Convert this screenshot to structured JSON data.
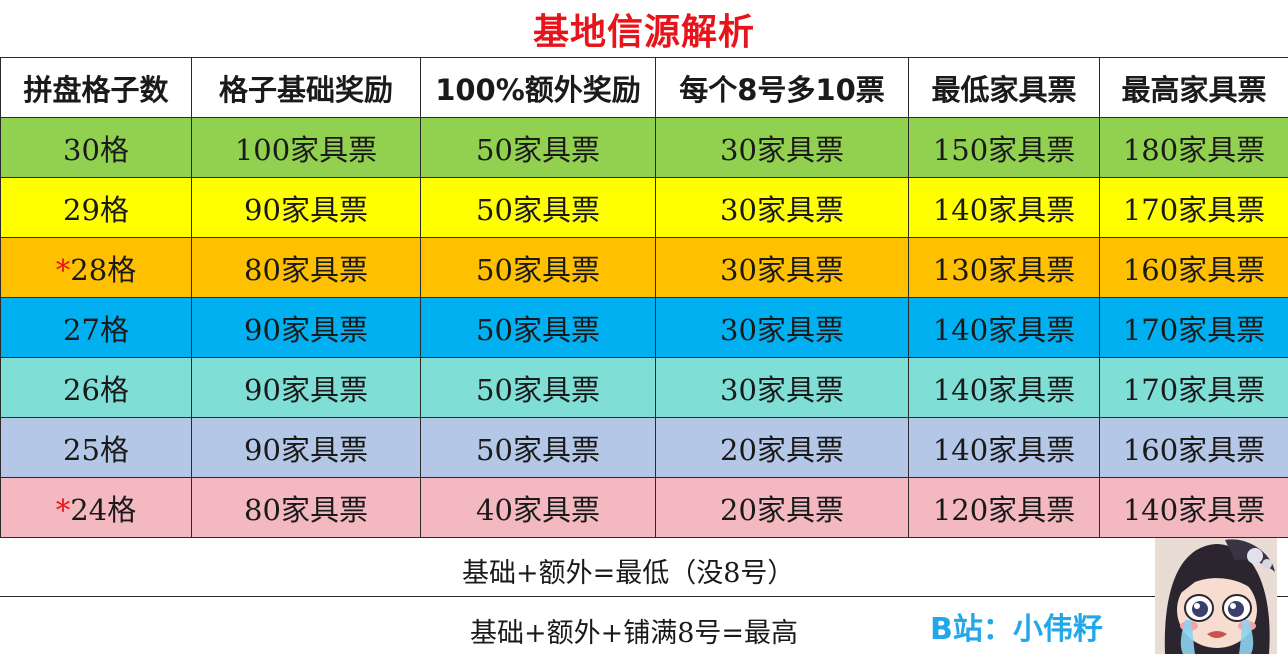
{
  "title": "基地信源解析",
  "columns": [
    "拼盘格子数",
    "格子基础奖励",
    "100%额外奖励",
    "每个8号多10票",
    "最低家具票",
    "最高家具票"
  ],
  "row_colors": [
    "#92d050",
    "#ffff00",
    "#ffc000",
    "#00b0f0",
    "#7fdfd7",
    "#b4c7e7",
    "#f4b8c0"
  ],
  "rows": [
    {
      "star": "",
      "grid": "30格",
      "base": "100家具票",
      "extra": "50家具票",
      "bonus": "30家具票",
      "min": "150家具票",
      "max": "180家具票"
    },
    {
      "star": "",
      "grid": "29格",
      "base": "90家具票",
      "extra": "50家具票",
      "bonus": "30家具票",
      "min": "140家具票",
      "max": "170家具票"
    },
    {
      "star": "*",
      "grid": "28格",
      "base": "80家具票",
      "extra": "50家具票",
      "bonus": "30家具票",
      "min": "130家具票",
      "max": "160家具票"
    },
    {
      "star": "",
      "grid": "27格",
      "base": "90家具票",
      "extra": "50家具票",
      "bonus": "30家具票",
      "min": "140家具票",
      "max": "170家具票"
    },
    {
      "star": "",
      "grid": "26格",
      "base": "90家具票",
      "extra": "50家具票",
      "bonus": "30家具票",
      "min": "140家具票",
      "max": "170家具票"
    },
    {
      "star": "",
      "grid": "25格",
      "base": "90家具票",
      "extra": "50家具票",
      "bonus": "20家具票",
      "min": "140家具票",
      "max": "160家具票"
    },
    {
      "star": "*",
      "grid": "24格",
      "base": "80家具票",
      "extra": "40家具票",
      "bonus": "20家具票",
      "min": "120家具票",
      "max": "140家具票"
    }
  ],
  "notes": {
    "min_formula": "基础+额外=最低（没8号）",
    "max_formula": "基础+额外+铺满8号=最高"
  },
  "credit": "B站：小伟籽",
  "avatar": "anime-crying-girl-avatar"
}
